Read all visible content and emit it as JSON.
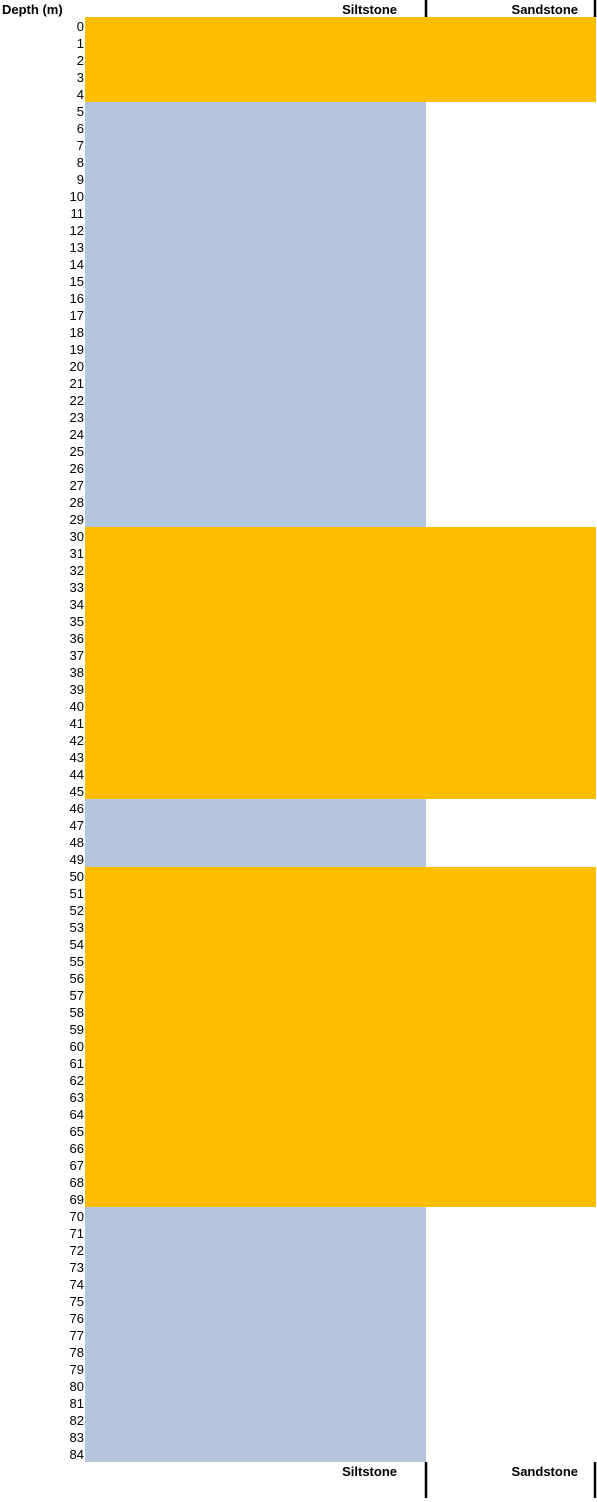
{
  "header": {
    "depth_label": "Depth (m)",
    "top_siltstone_label": "Siltstone",
    "top_sandstone_label": "Sandstone"
  },
  "footer": {
    "bottom_siltstone_label": "Siltstone",
    "bottom_sandstone_label": "Sandstone"
  },
  "colors": {
    "Sandstone": "#fdbe00",
    "Siltstone": "#b4c6dc",
    "divider": "#000000"
  },
  "chart_data": {
    "type": "lithology_log",
    "depth_unit": "m",
    "depth_ticks": [
      0,
      1,
      2,
      3,
      4,
      5,
      6,
      7,
      8,
      9,
      10,
      11,
      12,
      13,
      14,
      15,
      16,
      17,
      18,
      19,
      20,
      21,
      22,
      23,
      24,
      25,
      26,
      27,
      28,
      29,
      30,
      31,
      32,
      33,
      34,
      35,
      36,
      37,
      38,
      39,
      40,
      41,
      42,
      43,
      44,
      45,
      46,
      47,
      48,
      49,
      50,
      51,
      52,
      53,
      54,
      55,
      56,
      57,
      58,
      59,
      60,
      61,
      62,
      63,
      64,
      65,
      66,
      67,
      68,
      69,
      70,
      71,
      72,
      73,
      74,
      75,
      76,
      77,
      78,
      79,
      80,
      81,
      82,
      83,
      84
    ],
    "lithology_classes": [
      "Siltstone",
      "Sandstone"
    ],
    "intervals": [
      {
        "top": 0,
        "base": 5,
        "lithology": "Sandstone"
      },
      {
        "top": 5,
        "base": 30,
        "lithology": "Siltstone"
      },
      {
        "top": 30,
        "base": 46,
        "lithology": "Sandstone"
      },
      {
        "top": 46,
        "base": 50,
        "lithology": "Siltstone"
      },
      {
        "top": 50,
        "base": 70,
        "lithology": "Sandstone"
      },
      {
        "top": 70,
        "base": 85,
        "lithology": "Siltstone"
      }
    ]
  }
}
